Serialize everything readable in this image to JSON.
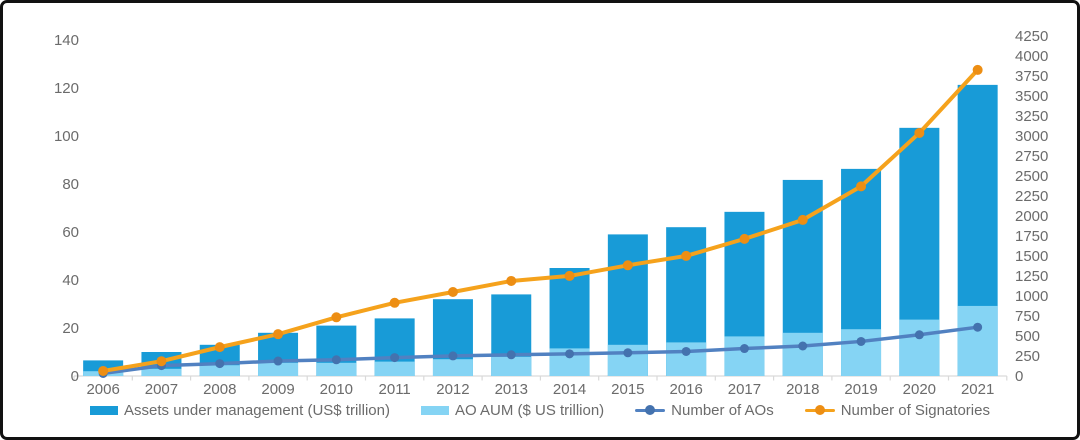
{
  "chart_data": {
    "type": "combo-bar-line",
    "title": "",
    "categories": [
      "2006",
      "2007",
      "2008",
      "2009",
      "2010",
      "2011",
      "2012",
      "2013",
      "2014",
      "2015",
      "2016",
      "2017",
      "2018",
      "2019",
      "2020",
      "2021"
    ],
    "series": [
      {
        "name": "Assets under management (US$ trillion)",
        "type": "bar",
        "axis": "left",
        "color": "#189BD7",
        "values": [
          6.5,
          10,
          13,
          18,
          21,
          24,
          32,
          34,
          45,
          59,
          62,
          68.4,
          81.7,
          86.3,
          103.4,
          121.3
        ]
      },
      {
        "name": "AO AUM ($ US trillion)",
        "type": "bar",
        "axis": "left",
        "color": "#85D4F4",
        "values": [
          2,
          3,
          4.5,
          5.5,
          5.5,
          6,
          7,
          8,
          11.5,
          13,
          14,
          16.5,
          18,
          19.5,
          23.5,
          29.2
        ]
      },
      {
        "name": "Number of AOs",
        "type": "line",
        "axis": "right",
        "color": "#5181C1",
        "marker_color": "#4472AE",
        "values": [
          32,
          130,
          155,
          187,
          203,
          230,
          251,
          265,
          277,
          290,
          307,
          343,
          375,
          432,
          515,
          610
        ]
      },
      {
        "name": "Number of Signatories",
        "type": "line",
        "axis": "right",
        "color": "#F5A21C",
        "marker_color": "#ED8E13",
        "values": [
          63,
          185,
          361,
          523,
          734,
          915,
          1050,
          1188,
          1251,
          1384,
          1501,
          1714,
          1951,
          2370,
          3038,
          3826
        ]
      }
    ],
    "axes": {
      "left": {
        "min": 0,
        "max": 140,
        "step": 20,
        "ticks": [
          "0",
          "20",
          "40",
          "60",
          "80",
          "100",
          "120",
          "140"
        ]
      },
      "right": {
        "min": 0,
        "max": 4250,
        "step": 250,
        "ticks": [
          "0",
          "250",
          "500",
          "750",
          "1000",
          "1250",
          "1500",
          "1750",
          "2000",
          "2250",
          "2500",
          "2750",
          "3000",
          "3250",
          "3500",
          "3750",
          "4000",
          "4250"
        ]
      }
    },
    "grid": false,
    "legend_position": "bottom",
    "style": {
      "text_color": "#6b6b6b",
      "axis_line_color": "#d9d9d9",
      "frame_border_color": "#111111",
      "background": "#ffffff"
    }
  }
}
